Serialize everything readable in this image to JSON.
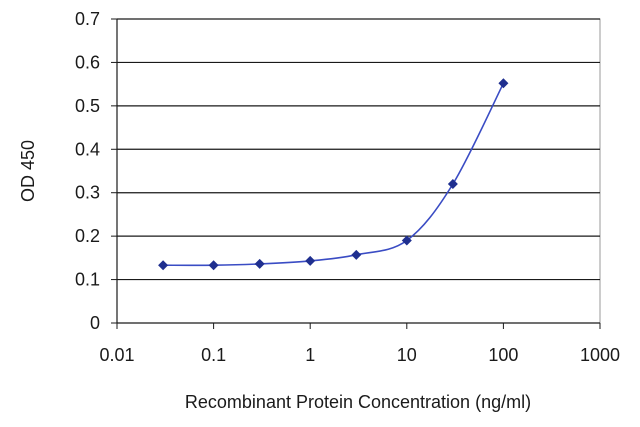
{
  "chart_data": {
    "type": "line",
    "xscale": "log",
    "xlabel": "Recombinant Protein Concentration (ng/ml)",
    "ylabel": "OD 450",
    "xlim": [
      0.01,
      1000
    ],
    "ylim": [
      0,
      0.7
    ],
    "x_ticks": [
      "0.01",
      "0.1",
      "1",
      "10",
      "100",
      "1000"
    ],
    "y_ticks": [
      "0",
      "0.1",
      "0.2",
      "0.3",
      "0.4",
      "0.5",
      "0.6",
      "0.7"
    ],
    "grid": true,
    "series": [
      {
        "color": "#1f2f8f",
        "x": [
          0.03,
          0.1,
          0.3,
          1,
          3,
          10,
          30,
          100
        ],
        "y": [
          0.133,
          0.133,
          0.136,
          0.143,
          0.157,
          0.19,
          0.32,
          0.552
        ]
      }
    ]
  }
}
